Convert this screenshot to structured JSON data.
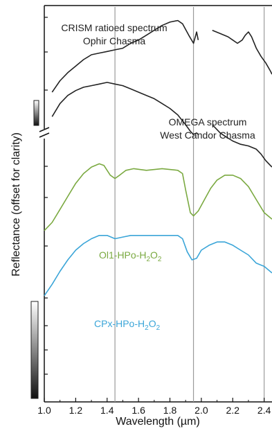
{
  "chart_data": {
    "type": "line",
    "xlabel": "Wavelength (µm)",
    "ylabel": "Reflectance (offset for clarity)",
    "xlim": [
      1.0,
      2.45
    ],
    "xticks": [
      "1.0",
      "1.2",
      "1.4",
      "1.6",
      "1.8",
      "2.0",
      "2.2",
      "2.4"
    ],
    "reference_lines_x": [
      1.45,
      1.95,
      2.4
    ],
    "series": [
      {
        "name": "CRISM ratioed spectrum Ophir Chasma",
        "label_line1": "CRISM ratioed spectrum",
        "label_line2": "Ophir Chasma",
        "color": "#222222",
        "segments": [
          [
            [
              1.05,
              0.2
            ],
            [
              1.1,
              0.27
            ],
            [
              1.15,
              0.32
            ],
            [
              1.2,
              0.36
            ],
            [
              1.25,
              0.4
            ],
            [
              1.3,
              0.43
            ],
            [
              1.35,
              0.44
            ],
            [
              1.4,
              0.45
            ],
            [
              1.45,
              0.46
            ],
            [
              1.5,
              0.47
            ],
            [
              1.55,
              0.5
            ],
            [
              1.6,
              0.52
            ],
            [
              1.65,
              0.55
            ],
            [
              1.7,
              0.58
            ],
            [
              1.75,
              0.61
            ],
            [
              1.8,
              0.63
            ],
            [
              1.85,
              0.64
            ],
            [
              1.88,
              0.62
            ],
            [
              1.92,
              0.55
            ],
            [
              1.95,
              0.5
            ],
            [
              1.97,
              0.57
            ],
            [
              1.98,
              0.52
            ]
          ],
          [
            [
              2.07,
              0.58
            ],
            [
              2.12,
              0.56
            ],
            [
              2.17,
              0.54
            ],
            [
              2.2,
              0.52
            ],
            [
              2.23,
              0.5
            ],
            [
              2.26,
              0.52
            ],
            [
              2.28,
              0.55
            ],
            [
              2.3,
              0.57
            ],
            [
              2.32,
              0.54
            ],
            [
              2.35,
              0.47
            ],
            [
              2.38,
              0.42
            ],
            [
              2.41,
              0.38
            ],
            [
              2.44,
              0.33
            ],
            [
              2.45,
              0.31
            ]
          ]
        ]
      },
      {
        "name": "OMEGA spectrum West Candor Chasma",
        "label_line1": "OMEGA spectrum",
        "label_line2": "West Candor Chasma",
        "color": "#222222",
        "segments": [
          [
            [
              1.05,
              0.05
            ],
            [
              1.1,
              0.13
            ],
            [
              1.15,
              0.18
            ],
            [
              1.2,
              0.21
            ],
            [
              1.25,
              0.23
            ],
            [
              1.3,
              0.24
            ],
            [
              1.35,
              0.25
            ],
            [
              1.4,
              0.26
            ],
            [
              1.45,
              0.25
            ],
            [
              1.5,
              0.24
            ],
            [
              1.55,
              0.22
            ],
            [
              1.6,
              0.2
            ],
            [
              1.65,
              0.18
            ],
            [
              1.7,
              0.16
            ],
            [
              1.75,
              0.13
            ],
            [
              1.8,
              0.1
            ],
            [
              1.85,
              0.06
            ],
            [
              1.9,
              0.0
            ],
            [
              1.93,
              -0.04
            ],
            [
              1.95,
              -0.06
            ],
            [
              1.97,
              -0.05
            ],
            [
              1.98,
              -0.06
            ]
          ],
          [
            [
              2.07,
              0.0
            ],
            [
              2.09,
              -0.02
            ],
            [
              2.12,
              -0.05
            ],
            [
              2.15,
              -0.07
            ],
            [
              2.2,
              -0.1
            ],
            [
              2.25,
              -0.12
            ],
            [
              2.3,
              -0.13
            ],
            [
              2.35,
              -0.15
            ],
            [
              2.38,
              -0.18
            ],
            [
              2.41,
              -0.22
            ],
            [
              2.44,
              -0.25
            ],
            [
              2.45,
              -0.26
            ]
          ]
        ]
      },
      {
        "name": "Ol1-HPo-H2O2",
        "label_main": "Ol1-HPo-H",
        "label_sub1": "2",
        "label_mid": "O",
        "label_sub2": "2",
        "color": "#7aa940",
        "segments": [
          [
            [
              1.0,
              -0.65
            ],
            [
              1.05,
              -0.6
            ],
            [
              1.1,
              -0.52
            ],
            [
              1.15,
              -0.44
            ],
            [
              1.2,
              -0.36
            ],
            [
              1.25,
              -0.3
            ],
            [
              1.3,
              -0.26
            ],
            [
              1.35,
              -0.24
            ],
            [
              1.38,
              -0.25
            ],
            [
              1.42,
              -0.31
            ],
            [
              1.45,
              -0.33
            ],
            [
              1.48,
              -0.31
            ],
            [
              1.52,
              -0.28
            ],
            [
              1.57,
              -0.27
            ],
            [
              1.65,
              -0.28
            ],
            [
              1.75,
              -0.27
            ],
            [
              1.85,
              -0.28
            ],
            [
              1.88,
              -0.3
            ],
            [
              1.9,
              -0.4
            ],
            [
              1.93,
              -0.54
            ],
            [
              1.95,
              -0.56
            ],
            [
              1.98,
              -0.53
            ],
            [
              2.02,
              -0.46
            ],
            [
              2.06,
              -0.39
            ],
            [
              2.1,
              -0.34
            ],
            [
              2.15,
              -0.31
            ],
            [
              2.2,
              -0.31
            ],
            [
              2.25,
              -0.33
            ],
            [
              2.3,
              -0.38
            ],
            [
              2.35,
              -0.46
            ],
            [
              2.4,
              -0.54
            ],
            [
              2.45,
              -0.58
            ]
          ]
        ]
      },
      {
        "name": "CPx-HPo-H2O2",
        "label_main": "CPx-HPo-H",
        "label_sub1": "2",
        "label_mid": "O",
        "label_sub2": "2",
        "color": "#3aa5d8",
        "segments": [
          [
            [
              1.0,
              -1.05
            ],
            [
              1.05,
              -0.98
            ],
            [
              1.1,
              -0.9
            ],
            [
              1.15,
              -0.83
            ],
            [
              1.2,
              -0.77
            ],
            [
              1.25,
              -0.73
            ],
            [
              1.3,
              -0.7
            ],
            [
              1.35,
              -0.68
            ],
            [
              1.4,
              -0.68
            ],
            [
              1.45,
              -0.7
            ],
            [
              1.5,
              -0.69
            ],
            [
              1.55,
              -0.68
            ],
            [
              1.65,
              -0.68
            ],
            [
              1.75,
              -0.68
            ],
            [
              1.85,
              -0.68
            ],
            [
              1.88,
              -0.7
            ],
            [
              1.91,
              -0.78
            ],
            [
              1.94,
              -0.83
            ],
            [
              1.97,
              -0.82
            ],
            [
              2.0,
              -0.77
            ],
            [
              2.05,
              -0.74
            ],
            [
              2.1,
              -0.72
            ],
            [
              2.15,
              -0.72
            ],
            [
              2.2,
              -0.74
            ],
            [
              2.25,
              -0.77
            ],
            [
              2.3,
              -0.8
            ],
            [
              2.35,
              -0.85
            ],
            [
              2.4,
              -0.87
            ],
            [
              2.45,
              -0.91
            ]
          ]
        ]
      }
    ]
  }
}
